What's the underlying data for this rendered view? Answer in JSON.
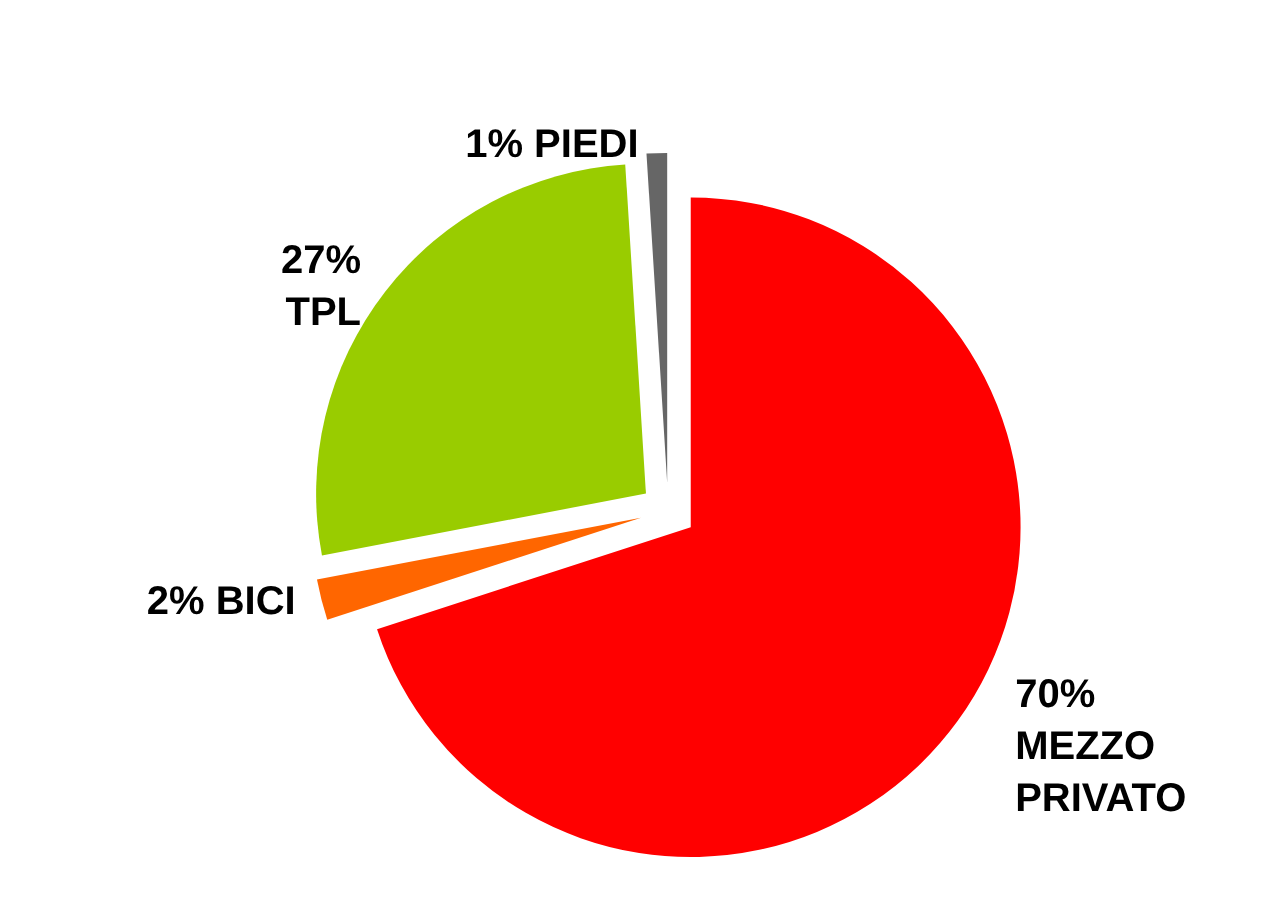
{
  "chart_data": {
    "type": "pie",
    "categories": [
      "MEZZO PRIVATO",
      "BICI",
      "TPL",
      "PIEDI"
    ],
    "values": [
      70,
      2,
      27,
      1
    ],
    "colors": [
      "#ff0000",
      "#ff6600",
      "#99cc00",
      "#666666"
    ],
    "value_labels": [
      "70%",
      "2%",
      "27%",
      "1%"
    ],
    "legend": false
  }
}
